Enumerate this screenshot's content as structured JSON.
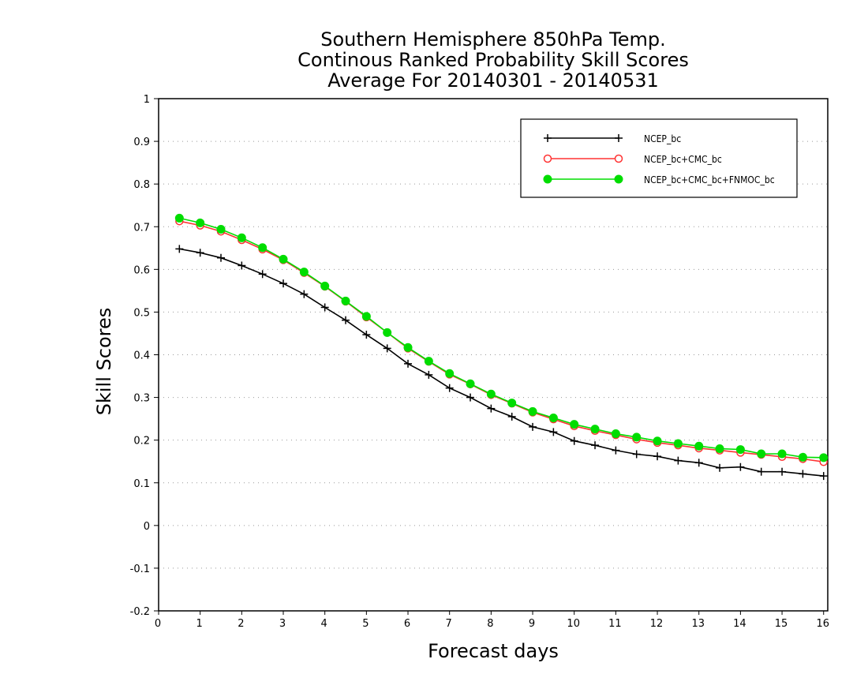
{
  "chart_data": {
    "type": "line",
    "title_lines": [
      "Southern Hemisphere 850hPa Temp.",
      "Continous Ranked Probability Skill Scores",
      "Average For 20140301 - 20140531"
    ],
    "xlabel": "Forecast days",
    "ylabel": "Skill Scores",
    "xlim": [
      0,
      16.1
    ],
    "ylim": [
      -0.2,
      1
    ],
    "x_ticks": [
      0,
      1,
      2,
      3,
      4,
      5,
      6,
      7,
      8,
      9,
      10,
      11,
      12,
      13,
      14,
      15,
      16
    ],
    "y_ticks": [
      -0.2,
      -0.1,
      0,
      0.1,
      0.2,
      0.3,
      0.4,
      0.5,
      0.6,
      0.7,
      0.8,
      0.9,
      1
    ],
    "y_tick_labels": [
      "-0.2",
      "-0.1",
      "0",
      "0.1",
      "0.2",
      "0.3",
      "0.4",
      "0.5",
      "0.6",
      "0.7",
      "0.8",
      "0.9",
      "1"
    ],
    "grid": "horizontal dotted",
    "legend_position": "top-right",
    "x": [
      0.5,
      1.0,
      1.5,
      2.0,
      2.5,
      3.0,
      3.5,
      4.0,
      4.5,
      5.0,
      5.5,
      6.0,
      6.5,
      7.0,
      7.5,
      8.0,
      8.5,
      9.0,
      9.5,
      10.0,
      10.5,
      11.0,
      11.5,
      12.0,
      12.5,
      13.0,
      13.5,
      14.0,
      14.5,
      15.0,
      15.5,
      16.0
    ],
    "series": [
      {
        "name": "NCEP_bc",
        "color": "#000000",
        "marker": "plus",
        "values": [
          0.648,
          0.639,
          0.627,
          0.609,
          0.589,
          0.567,
          0.542,
          0.511,
          0.481,
          0.447,
          0.415,
          0.379,
          0.353,
          0.322,
          0.3,
          0.274,
          0.255,
          0.231,
          0.219,
          0.198,
          0.188,
          0.176,
          0.167,
          0.162,
          0.152,
          0.147,
          0.135,
          0.137,
          0.126,
          0.126,
          0.121,
          0.116
        ]
      },
      {
        "name": "NCEP_bc+CMC_bc",
        "color": "#ff3333",
        "marker": "open-circle",
        "values": [
          0.713,
          0.703,
          0.689,
          0.669,
          0.647,
          0.622,
          0.592,
          0.56,
          0.525,
          0.488,
          0.452,
          0.415,
          0.384,
          0.354,
          0.331,
          0.306,
          0.286,
          0.265,
          0.249,
          0.233,
          0.222,
          0.212,
          0.202,
          0.194,
          0.188,
          0.181,
          0.176,
          0.171,
          0.166,
          0.161,
          0.156,
          0.149
        ]
      },
      {
        "name": "NCEP_bc+CMC_bc+FNMOC_bc",
        "color": "#00dd00",
        "marker": "filled-circle",
        "values": [
          0.72,
          0.709,
          0.694,
          0.674,
          0.651,
          0.624,
          0.594,
          0.561,
          0.526,
          0.49,
          0.452,
          0.417,
          0.385,
          0.356,
          0.332,
          0.308,
          0.287,
          0.267,
          0.252,
          0.237,
          0.226,
          0.215,
          0.207,
          0.198,
          0.192,
          0.186,
          0.18,
          0.178,
          0.168,
          0.168,
          0.16,
          0.159
        ]
      }
    ]
  }
}
